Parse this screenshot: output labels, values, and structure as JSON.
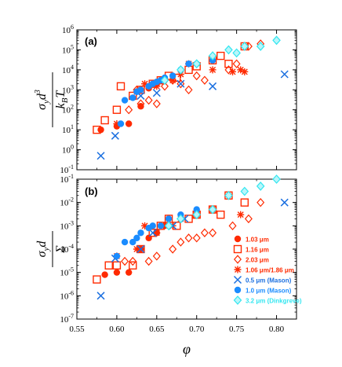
{
  "chart_data": [
    {
      "panel": "(a)",
      "type": "scatter",
      "ylabel": "σ_y d³ / k_B T",
      "yscale": "log",
      "ylim": [
        0.1,
        1000000
      ],
      "xlim": [
        0.55,
        0.825
      ],
      "y_ticks": [
        {
          "v": 0.1,
          "base": "10",
          "exp": "-1"
        },
        {
          "v": 1,
          "base": "10",
          "exp": "0"
        },
        {
          "v": 10,
          "base": "10",
          "exp": "1"
        },
        {
          "v": 100,
          "base": "10",
          "exp": "2"
        },
        {
          "v": 1000,
          "base": "10",
          "exp": "3"
        },
        {
          "v": 10000,
          "base": "10",
          "exp": "4"
        },
        {
          "v": 100000,
          "base": "10",
          "exp": "5"
        },
        {
          "v": 1000000,
          "base": "10",
          "exp": "6"
        }
      ],
      "series": [
        {
          "key": "s1",
          "x": [
            0.58,
            0.6,
            0.615,
            0.63,
            0.64,
            0.65,
            0.66
          ],
          "y": [
            10,
            15,
            20,
            150,
            1200,
            2000,
            3000
          ]
        },
        {
          "key": "s2",
          "x": [
            0.575,
            0.585,
            0.6,
            0.605,
            0.62,
            0.63,
            0.645,
            0.655,
            0.665,
            0.675,
            0.69,
            0.7,
            0.72,
            0.73,
            0.74,
            0.76
          ],
          "y": [
            10,
            30,
            100,
            1500,
            500,
            1000,
            2000,
            3000,
            5000,
            4000,
            10000,
            15000,
            30000,
            50000,
            20000,
            150000
          ]
        },
        {
          "key": "s3",
          "x": [
            0.615,
            0.625,
            0.63,
            0.64,
            0.65,
            0.66,
            0.67,
            0.68,
            0.69,
            0.7,
            0.71,
            0.74,
            0.75,
            0.765,
            0.78
          ],
          "y": [
            100,
            1000,
            200,
            300,
            200,
            1500,
            3000,
            2000,
            1000,
            5000,
            3000,
            10000,
            20000,
            150000,
            200000
          ]
        },
        {
          "key": "s4",
          "x": [
            0.6,
            0.625,
            0.635,
            0.65,
            0.67,
            0.68,
            0.69,
            0.72,
            0.745,
            0.755,
            0.76
          ],
          "y": [
            20,
            800,
            2000,
            1500,
            3000,
            6000,
            20000,
            10000,
            8000,
            10000,
            8000
          ]
        },
        {
          "key": "s5",
          "x": [
            0.58,
            0.598,
            0.63,
            0.65,
            0.68,
            0.72,
            0.81
          ],
          "y": [
            0.5,
            5,
            500,
            700,
            2000,
            1500,
            6000
          ]
        },
        {
          "key": "s6",
          "x": [
            0.605,
            0.61,
            0.62,
            0.625,
            0.63,
            0.64,
            0.645,
            0.65,
            0.655,
            0.66,
            0.67,
            0.68,
            0.69,
            0.7,
            0.72
          ],
          "y": [
            20,
            300,
            400,
            800,
            1000,
            1500,
            2000,
            2500,
            3000,
            4000,
            5000,
            10000,
            20000,
            20000,
            30000
          ]
        },
        {
          "key": "s7",
          "x": [
            0.66,
            0.68,
            0.7,
            0.72,
            0.74,
            0.75,
            0.76,
            0.78,
            0.8
          ],
          "y": [
            3000,
            10000,
            20000,
            50000,
            100000,
            70000,
            150000,
            150000,
            300000
          ]
        }
      ]
    },
    {
      "panel": "(b)",
      "type": "scatter",
      "ylabel": "σ_y d / Σ",
      "xlabel": "φ",
      "yscale": "log",
      "ylim": [
        1e-07,
        0.1
      ],
      "xlim": [
        0.55,
        0.825
      ],
      "x_ticks": [
        0.55,
        0.6,
        0.65,
        0.7,
        0.75,
        0.8
      ],
      "x_tick_labels": [
        "0.55",
        "0.60",
        "0.65",
        "0.70",
        "0.75",
        "0.80"
      ],
      "y_ticks": [
        {
          "v": 1e-07,
          "base": "10",
          "exp": "-7"
        },
        {
          "v": 1e-06,
          "base": "10",
          "exp": "-6"
        },
        {
          "v": 1e-05,
          "base": "10",
          "exp": "-5"
        },
        {
          "v": 0.0001,
          "base": "10",
          "exp": "-4"
        },
        {
          "v": 0.001,
          "base": "10",
          "exp": "-3"
        },
        {
          "v": 0.01,
          "base": "10",
          "exp": "-2"
        },
        {
          "v": 0.1,
          "base": "10",
          "exp": "-1"
        }
      ],
      "legend_position": "lower-right",
      "series": [
        {
          "key": "s1",
          "name": "1.03 μm",
          "x": [
            0.585,
            0.6,
            0.615,
            0.63,
            0.64,
            0.65,
            0.66
          ],
          "y": [
            8e-06,
            1e-05,
            1e-05,
            0.0001,
            0.0003,
            0.0005,
            0.001
          ]
        },
        {
          "key": "s2",
          "name": "1.16 μm",
          "x": [
            0.575,
            0.59,
            0.6,
            0.62,
            0.63,
            0.645,
            0.655,
            0.665,
            0.675,
            0.69,
            0.7,
            0.72,
            0.73,
            0.74,
            0.76
          ],
          "y": [
            5e-06,
            2e-05,
            2e-05,
            2e-05,
            0.0001,
            0.0005,
            0.001,
            0.002,
            0.001,
            0.002,
            0.003,
            0.005,
            0.003,
            0.02,
            0.01
          ]
        },
        {
          "key": "s3",
          "name": "2.03 μm",
          "x": [
            0.61,
            0.62,
            0.64,
            0.65,
            0.67,
            0.68,
            0.69,
            0.7,
            0.71,
            0.72,
            0.745,
            0.765,
            0.78
          ],
          "y": [
            3e-05,
            3e-05,
            3e-05,
            5e-05,
            0.0001,
            0.0002,
            0.0003,
            0.0003,
            0.0005,
            0.0005,
            0.001,
            0.002,
            0.01
          ]
        },
        {
          "key": "s4",
          "name": "1.06 μm/1.86 μm",
          "x": [
            0.6,
            0.625,
            0.635,
            0.65,
            0.67,
            0.68,
            0.7,
            0.72,
            0.755
          ],
          "y": [
            5e-05,
            0.0001,
            0.001,
            0.0005,
            0.001,
            0.002,
            0.003,
            0.005,
            0.003
          ]
        },
        {
          "key": "s5",
          "name": "0.5 μm (Mason)",
          "x": [
            0.58,
            0.598,
            0.63,
            0.645,
            0.67,
            0.685,
            0.81
          ],
          "y": [
            1e-06,
            4e-05,
            0.0001,
            0.0005,
            0.001,
            0.002,
            0.01
          ]
        },
        {
          "key": "s6",
          "name": "1.0 μm (Mason)",
          "x": [
            0.6,
            0.61,
            0.62,
            0.625,
            0.63,
            0.64,
            0.645,
            0.655,
            0.665,
            0.68,
            0.7
          ],
          "y": [
            5e-05,
            0.0002,
            0.0002,
            0.0003,
            0.0005,
            0.0008,
            0.001,
            0.001,
            0.002,
            0.003,
            0.005
          ]
        },
        {
          "key": "s7",
          "name": "3.2 μm (Dinkgreve)",
          "x": [
            0.665,
            0.68,
            0.7,
            0.72,
            0.74,
            0.76,
            0.78,
            0.8
          ],
          "y": [
            0.001,
            0.002,
            0.003,
            0.005,
            0.02,
            0.03,
            0.05,
            0.1
          ]
        }
      ]
    }
  ],
  "style": {
    "s1": {
      "shape": "filled-circle",
      "color": "#ff2a00"
    },
    "s2": {
      "shape": "open-square",
      "color": "#ff2a00"
    },
    "s3": {
      "shape": "open-diamond",
      "color": "#ff2a00"
    },
    "s4": {
      "shape": "asterisk",
      "color": "#ff2a00"
    },
    "s5": {
      "shape": "x-cross",
      "color": "#1a6fe0"
    },
    "s6": {
      "shape": "filled-circle",
      "color": "#1a8cff"
    },
    "s7": {
      "shape": "open-diamond-filled",
      "color": "#33e6f0"
    }
  }
}
